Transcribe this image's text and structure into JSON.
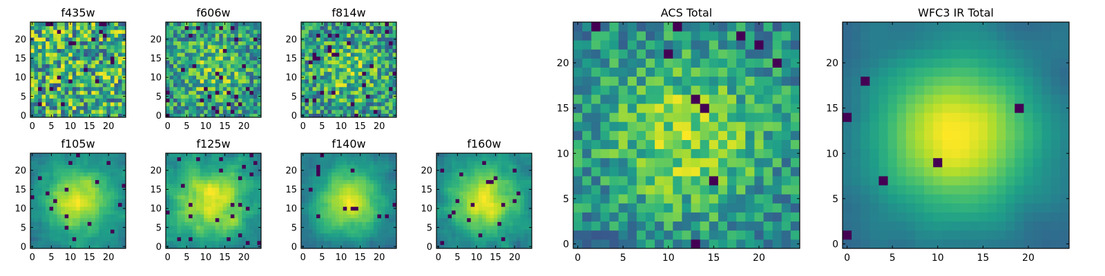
{
  "chart_data": [
    {
      "type": "heatmap",
      "title": "f435w",
      "grid_size": 25,
      "colormap": "viridis",
      "seed": 11,
      "peak": 0.0,
      "smooth": 0,
      "noise": 1.0,
      "dark": 0.04,
      "xlim": [
        -0.5,
        24.5
      ],
      "ylim": [
        -0.5,
        24.5
      ],
      "xticks": [
        0,
        5,
        10,
        15,
        20
      ],
      "yticks": [
        0,
        5,
        10,
        15,
        20
      ],
      "grid": false
    },
    {
      "type": "heatmap",
      "title": "f606w",
      "grid_size": 25,
      "colormap": "viridis",
      "seed": 23,
      "peak": 0.35,
      "smooth": 0,
      "noise": 0.9,
      "dark": 0.04,
      "xlim": [
        -0.5,
        24.5
      ],
      "ylim": [
        -0.5,
        24.5
      ],
      "xticks": [
        0,
        5,
        10,
        15,
        20
      ],
      "yticks": [
        0,
        5,
        10,
        15,
        20
      ],
      "grid": false
    },
    {
      "type": "heatmap",
      "title": "f814w",
      "grid_size": 25,
      "colormap": "viridis",
      "seed": 37,
      "peak": 0.3,
      "smooth": 0,
      "noise": 0.95,
      "dark": 0.05,
      "xlim": [
        -0.5,
        24.5
      ],
      "ylim": [
        -0.5,
        24.5
      ],
      "xticks": [
        0,
        5,
        10,
        15,
        20
      ],
      "yticks": [
        0,
        5,
        10,
        15,
        20
      ],
      "grid": false
    },
    {
      "type": "heatmap",
      "title": "f105w",
      "grid_size": 25,
      "colormap": "viridis",
      "seed": 41,
      "peak": 0.8,
      "smooth": 1,
      "noise": 0.55,
      "dark": 0.02,
      "xlim": [
        -0.5,
        24.5
      ],
      "ylim": [
        -0.5,
        24.5
      ],
      "xticks": [
        0,
        5,
        10,
        15,
        20
      ],
      "yticks": [
        0,
        5,
        10,
        15,
        20
      ],
      "grid": false
    },
    {
      "type": "heatmap",
      "title": "f125w",
      "grid_size": 25,
      "colormap": "viridis",
      "seed": 53,
      "peak": 0.6,
      "smooth": 1,
      "noise": 0.6,
      "dark": 0.05,
      "xlim": [
        -0.5,
        24.5
      ],
      "ylim": [
        -0.5,
        24.5
      ],
      "xticks": [
        0,
        5,
        10,
        15,
        20
      ],
      "yticks": [
        0,
        5,
        10,
        15,
        20
      ],
      "grid": false
    },
    {
      "type": "heatmap",
      "title": "f140w",
      "grid_size": 25,
      "colormap": "viridis",
      "seed": 67,
      "peak": 0.85,
      "smooth": 1,
      "noise": 0.5,
      "dark": 0.02,
      "xlim": [
        -0.5,
        24.5
      ],
      "ylim": [
        -0.5,
        24.5
      ],
      "xticks": [
        0,
        5,
        10,
        15,
        20
      ],
      "yticks": [
        0,
        5,
        10,
        15,
        20
      ],
      "grid": false
    },
    {
      "type": "heatmap",
      "title": "f160w",
      "grid_size": 25,
      "colormap": "viridis",
      "seed": 79,
      "peak": 0.8,
      "smooth": 1,
      "noise": 0.55,
      "dark": 0.04,
      "xlim": [
        -0.5,
        24.5
      ],
      "ylim": [
        -0.5,
        24.5
      ],
      "xticks": [
        0,
        5,
        10,
        15,
        20
      ],
      "yticks": [
        0,
        5,
        10,
        15,
        20
      ],
      "grid": false
    },
    {
      "type": "heatmap",
      "title": "ACS Total",
      "grid_size": 25,
      "colormap": "viridis",
      "seed": 97,
      "peak": 0.5,
      "smooth": 0,
      "noise": 0.6,
      "dark": 0.02,
      "xlim": [
        -0.5,
        24.5
      ],
      "ylim": [
        -0.5,
        24.5
      ],
      "xticks": [
        0,
        5,
        10,
        15,
        20
      ],
      "yticks": [
        0,
        5,
        10,
        15,
        20
      ],
      "grid": false
    },
    {
      "type": "heatmap",
      "title": "WFC3 IR Total",
      "grid_size": 25,
      "colormap": "viridis",
      "seed": 113,
      "peak": 1.0,
      "smooth": 2,
      "noise": 0.35,
      "dark": 0.015,
      "xlim": [
        -0.5,
        24.5
      ],
      "ylim": [
        -0.5,
        24.5
      ],
      "xticks": [
        0,
        5,
        10,
        15,
        20
      ],
      "yticks": [
        0,
        5,
        10,
        15,
        20
      ],
      "grid": false
    }
  ]
}
